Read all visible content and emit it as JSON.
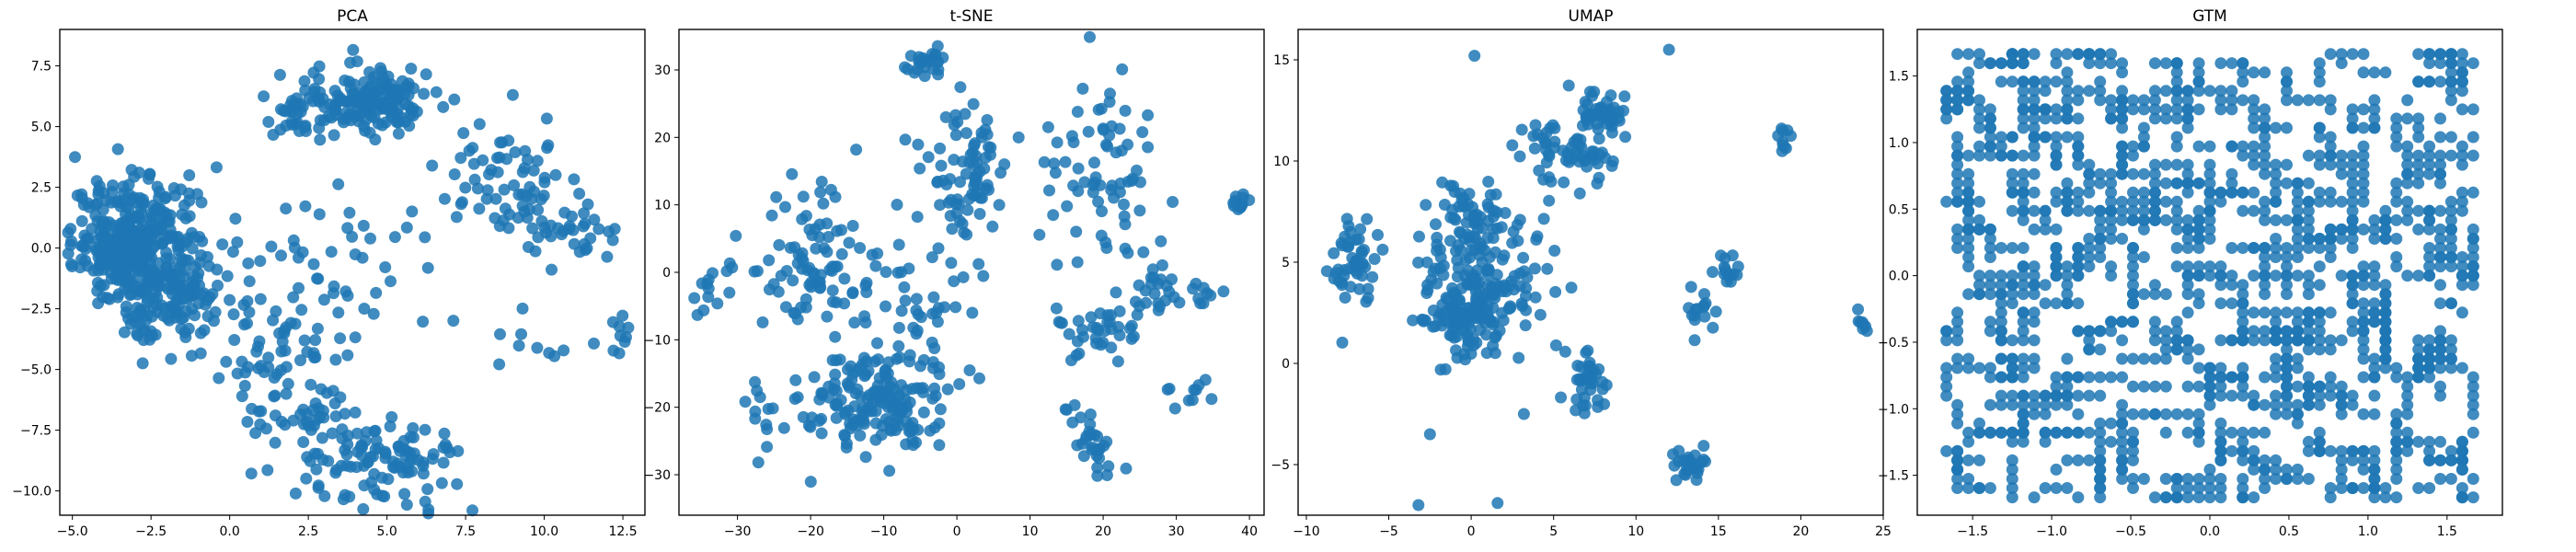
{
  "chart_data": [
    {
      "type": "scatter",
      "title": "PCA",
      "xlim": [
        -5.4,
        13.2
      ],
      "ylim": [
        -11.0,
        9.0
      ],
      "xticks": [
        "-5.0",
        "-2.5",
        "0.0",
        "2.5",
        "5.0",
        "7.5",
        "10.0",
        "12.5"
      ],
      "yticks": [
        "-10.0",
        "-7.5",
        "-5.0",
        "-2.5",
        "0.0",
        "2.5",
        "5.0",
        "7.5"
      ],
      "clusters": [
        {
          "cx": -3.0,
          "cy": 0.2,
          "sx": 1.0,
          "sy": 1.3,
          "n": 380
        },
        {
          "cx": -1.8,
          "cy": -2.5,
          "sx": 0.9,
          "sy": 1.0,
          "n": 90
        },
        {
          "cx": 4.5,
          "cy": 6.2,
          "sx": 1.0,
          "sy": 0.7,
          "n": 150
        },
        {
          "cx": 2.5,
          "cy": 5.5,
          "sx": 0.8,
          "sy": 0.5,
          "n": 40
        },
        {
          "cx": 9.0,
          "cy": 2.5,
          "sx": 1.2,
          "sy": 1.2,
          "n": 70
        },
        {
          "cx": 11.0,
          "cy": 0.5,
          "sx": 0.8,
          "sy": 0.7,
          "n": 30
        },
        {
          "cx": 4.8,
          "cy": -9.0,
          "sx": 1.3,
          "sy": 0.9,
          "n": 110
        },
        {
          "cx": 2.5,
          "cy": -7.0,
          "sx": 1.0,
          "sy": 0.7,
          "n": 40
        },
        {
          "cx": 1.5,
          "cy": -4.5,
          "sx": 1.3,
          "sy": 1.0,
          "n": 45
        },
        {
          "cx": 3.0,
          "cy": -1.0,
          "sx": 2.0,
          "sy": 1.8,
          "n": 60
        },
        {
          "cx": 10.5,
          "cy": -3.8,
          "sx": 1.0,
          "sy": 0.5,
          "n": 12
        },
        {
          "cx": 12.5,
          "cy": -3.4,
          "sx": 0.2,
          "sy": 0.3,
          "n": 6
        }
      ]
    },
    {
      "type": "scatter",
      "title": "t-SNE",
      "xlim": [
        -38,
        42
      ],
      "ylim": [
        -36,
        36
      ],
      "xticks": [
        "-30",
        "-20",
        "-10",
        "0",
        "10",
        "20",
        "30",
        "40"
      ],
      "yticks": [
        "-30",
        "-20",
        "-10",
        "0",
        "10",
        "20",
        "30"
      ],
      "clusters": [
        {
          "cx": -11,
          "cy": -19,
          "sx": 5,
          "sy": 4,
          "n": 180
        },
        {
          "cx": -20,
          "cy": 2,
          "sx": 5,
          "sy": 6,
          "n": 90
        },
        {
          "cx": 1,
          "cy": 15,
          "sx": 3,
          "sy": 5,
          "n": 80
        },
        {
          "cx": -4,
          "cy": 31,
          "sx": 1.5,
          "sy": 1,
          "n": 25
        },
        {
          "cx": 20,
          "cy": 16,
          "sx": 4,
          "sy": 6,
          "n": 70
        },
        {
          "cx": 18,
          "cy": -9,
          "sx": 3,
          "sy": 2,
          "n": 35
        },
        {
          "cx": 18,
          "cy": -25,
          "sx": 2,
          "sy": 3,
          "n": 30
        },
        {
          "cx": 26,
          "cy": -2,
          "sx": 2,
          "sy": 2,
          "n": 25
        },
        {
          "cx": 38,
          "cy": 10,
          "sx": 1,
          "sy": 1,
          "n": 12
        },
        {
          "cx": 34,
          "cy": -4,
          "sx": 1.5,
          "sy": 1.5,
          "n": 10
        },
        {
          "cx": 32,
          "cy": -18,
          "sx": 1.5,
          "sy": 1.5,
          "n": 10
        },
        {
          "cx": -34,
          "cy": -3,
          "sx": 1.5,
          "sy": 2,
          "n": 12
        },
        {
          "cx": -27,
          "cy": -20,
          "sx": 1.5,
          "sy": 2,
          "n": 10
        },
        {
          "cx": -5,
          "cy": -5,
          "sx": 6,
          "sy": 5,
          "n": 40
        }
      ]
    },
    {
      "type": "scatter",
      "title": "UMAP",
      "xlim": [
        -10.5,
        25.0
      ],
      "ylim": [
        -7.5,
        16.5
      ],
      "xticks": [
        "-10",
        "-5",
        "0",
        "5",
        "10",
        "15",
        "20",
        "25"
      ],
      "yticks": [
        "-5",
        "0",
        "5",
        "10",
        "15"
      ],
      "clusters": [
        {
          "cx": 0,
          "cy": 3,
          "sx": 1.5,
          "sy": 1.5,
          "n": 200
        },
        {
          "cx": 0,
          "cy": 7,
          "sx": 1.2,
          "sy": 1.0,
          "n": 60
        },
        {
          "cx": -7,
          "cy": 5,
          "sx": 0.8,
          "sy": 1.2,
          "n": 50
        },
        {
          "cx": 6,
          "cy": 10.5,
          "sx": 1.5,
          "sy": 1.0,
          "n": 70
        },
        {
          "cx": 8,
          "cy": 12.5,
          "sx": 0.6,
          "sy": 0.5,
          "n": 40
        },
        {
          "cx": 7,
          "cy": -1,
          "sx": 0.6,
          "sy": 0.8,
          "n": 40
        },
        {
          "cx": 13.2,
          "cy": -5.0,
          "sx": 0.5,
          "sy": 0.4,
          "n": 30
        },
        {
          "cx": 15.5,
          "cy": 4.5,
          "sx": 0.3,
          "sy": 0.5,
          "n": 15
        },
        {
          "cx": 19,
          "cy": 10.9,
          "sx": 0.3,
          "sy": 0.4,
          "n": 10
        },
        {
          "cx": 23.5,
          "cy": 2,
          "sx": 0.4,
          "sy": 0.3,
          "n": 8
        },
        {
          "cx": 14,
          "cy": 2.5,
          "sx": 0.5,
          "sy": 0.5,
          "n": 15
        },
        {
          "cx": 3.5,
          "cy": 5,
          "sx": 1.5,
          "sy": 2,
          "n": 25
        }
      ],
      "extra_points": [
        [
          12.0,
          15.5
        ],
        [
          0.2,
          15.2
        ],
        [
          -3.2,
          -7.0
        ],
        [
          1.6,
          -6.9
        ],
        [
          -2.5,
          -3.5
        ],
        [
          4.2,
          2.4
        ],
        [
          3.2,
          -2.5
        ]
      ]
    },
    {
      "type": "scatter",
      "title": "GTM",
      "xlim": [
        -1.85,
        1.85
      ],
      "ylim": [
        -1.8,
        1.85
      ],
      "xticks": [
        "-1.5",
        "-1.0",
        "-0.5",
        "0.0",
        "0.5",
        "1.0",
        "1.5"
      ],
      "yticks": [
        "-1.5",
        "-1.0",
        "-0.5",
        "0.0",
        "0.5",
        "1.0",
        "1.5"
      ],
      "grid_points": 600
    }
  ],
  "colors": {
    "point": "#1f77b4"
  }
}
